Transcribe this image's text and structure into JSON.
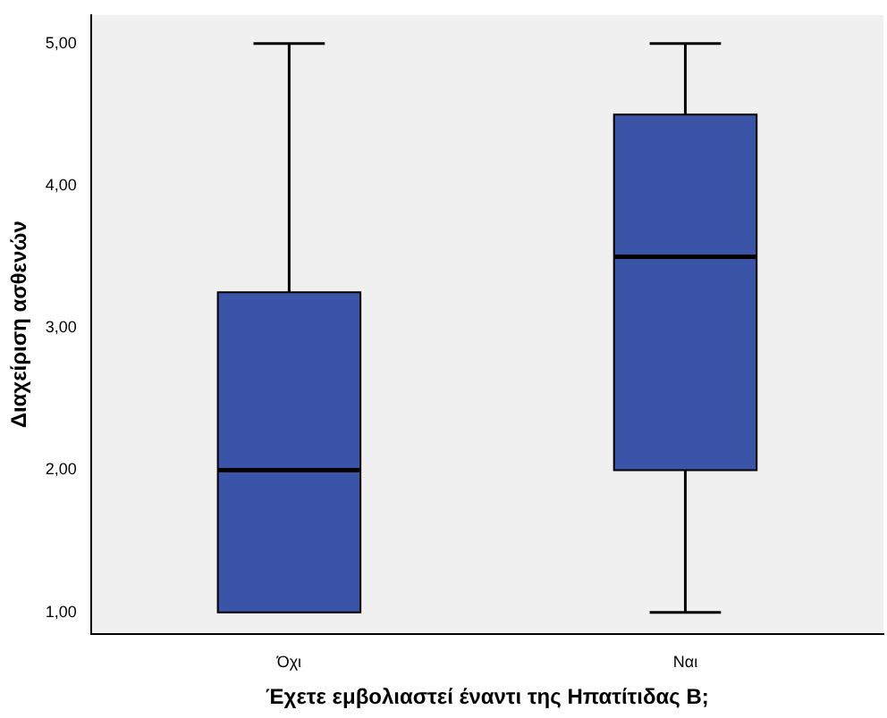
{
  "chart_data": {
    "type": "box",
    "xlabel": "Έχετε εμβολιαστεί έναντι της Ηπατίτιδας Β;",
    "ylabel": "Διαχείριση ασθενών",
    "categories": [
      "Όχι",
      "Ναι"
    ],
    "boxes": [
      {
        "low": 1,
        "q1": 1,
        "median": 2,
        "q3": 3.25,
        "high": 5
      },
      {
        "low": 1,
        "q1": 2,
        "median": 3.5,
        "q3": 4.5,
        "high": 5
      }
    ],
    "color": "#3a54a8",
    "ylim": [
      0.85,
      5.2
    ],
    "yticks": [
      {
        "value": 1,
        "label": "1,00"
      },
      {
        "value": 2,
        "label": "2,00"
      },
      {
        "value": 3,
        "label": "3,00"
      },
      {
        "value": 4,
        "label": "4,00"
      },
      {
        "value": 5,
        "label": "5,00"
      }
    ]
  }
}
